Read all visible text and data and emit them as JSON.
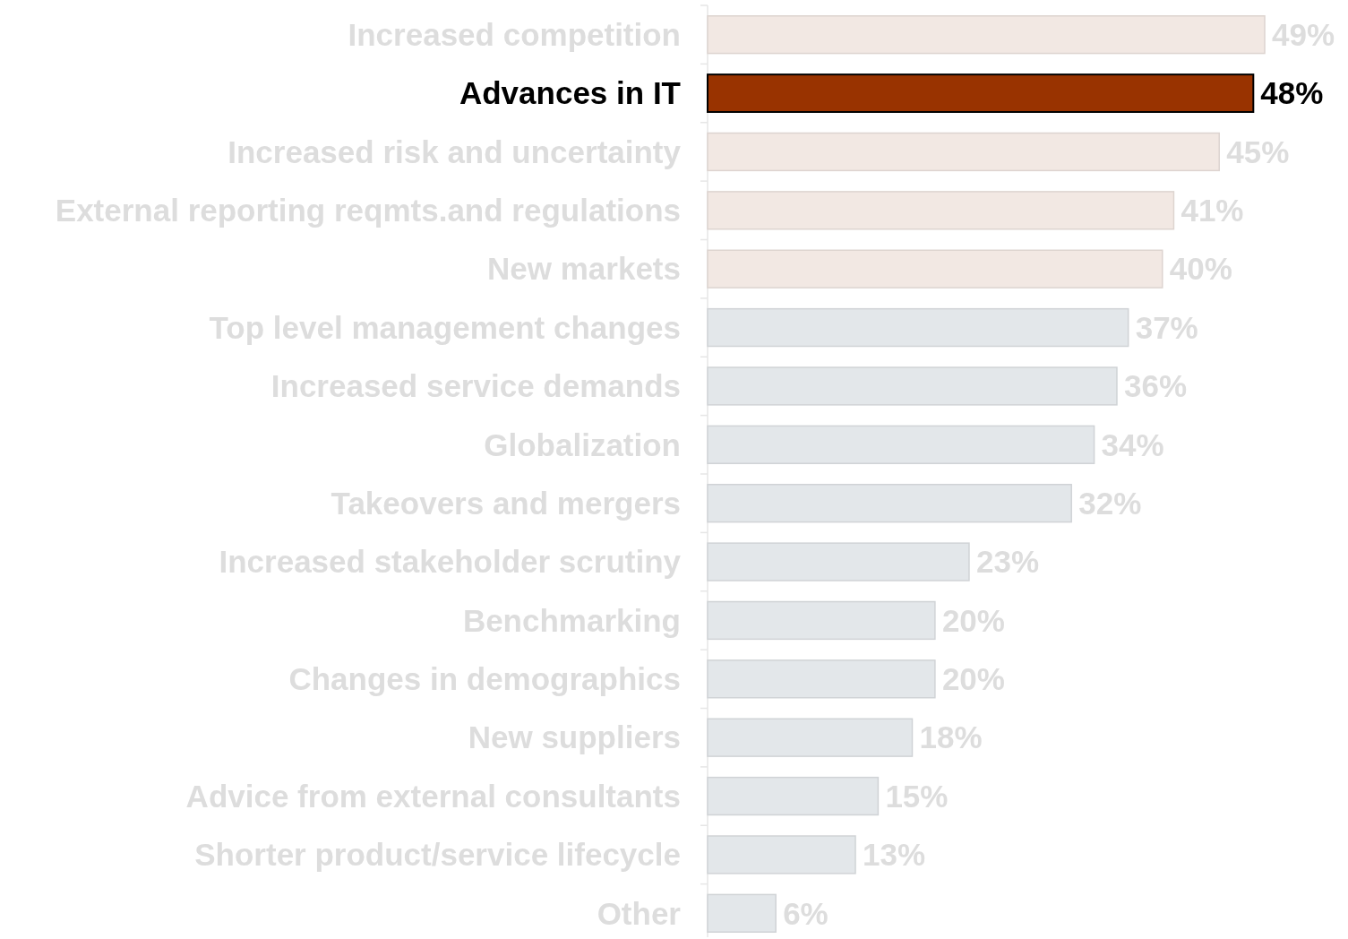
{
  "chart_data": {
    "type": "bar",
    "orientation": "horizontal",
    "categories": [
      "Increased competition",
      "Advances in IT",
      "Increased risk and uncertainty",
      "External reporting reqmts.and regulations",
      "New markets",
      "Top level management changes",
      "Increased service demands",
      "Globalization",
      "Takeovers and mergers",
      "Increased stakeholder scrutiny",
      "Benchmarking",
      "Changes in demographics",
      "New suppliers",
      "Advice from external consultants",
      "Shorter product/service lifecycle",
      "Other"
    ],
    "values": [
      49,
      48,
      45,
      41,
      40,
      37,
      36,
      34,
      32,
      23,
      20,
      20,
      18,
      15,
      13,
      6
    ],
    "value_labels": [
      "49%",
      "48%",
      "45%",
      "41%",
      "40%",
      "37%",
      "36%",
      "34%",
      "32%",
      "23%",
      "20%",
      "20%",
      "18%",
      "15%",
      "13%",
      "6%"
    ],
    "colors": [
      "#f2e8e3",
      "#993300",
      "#f2e8e3",
      "#f2e8e3",
      "#f2e8e3",
      "#e3e7ea",
      "#e3e7ea",
      "#e3e7ea",
      "#e3e7ea",
      "#e3e7ea",
      "#e3e7ea",
      "#e3e7ea",
      "#e3e7ea",
      "#e3e7ea",
      "#e3e7ea",
      "#e3e7ea"
    ]
  }
}
